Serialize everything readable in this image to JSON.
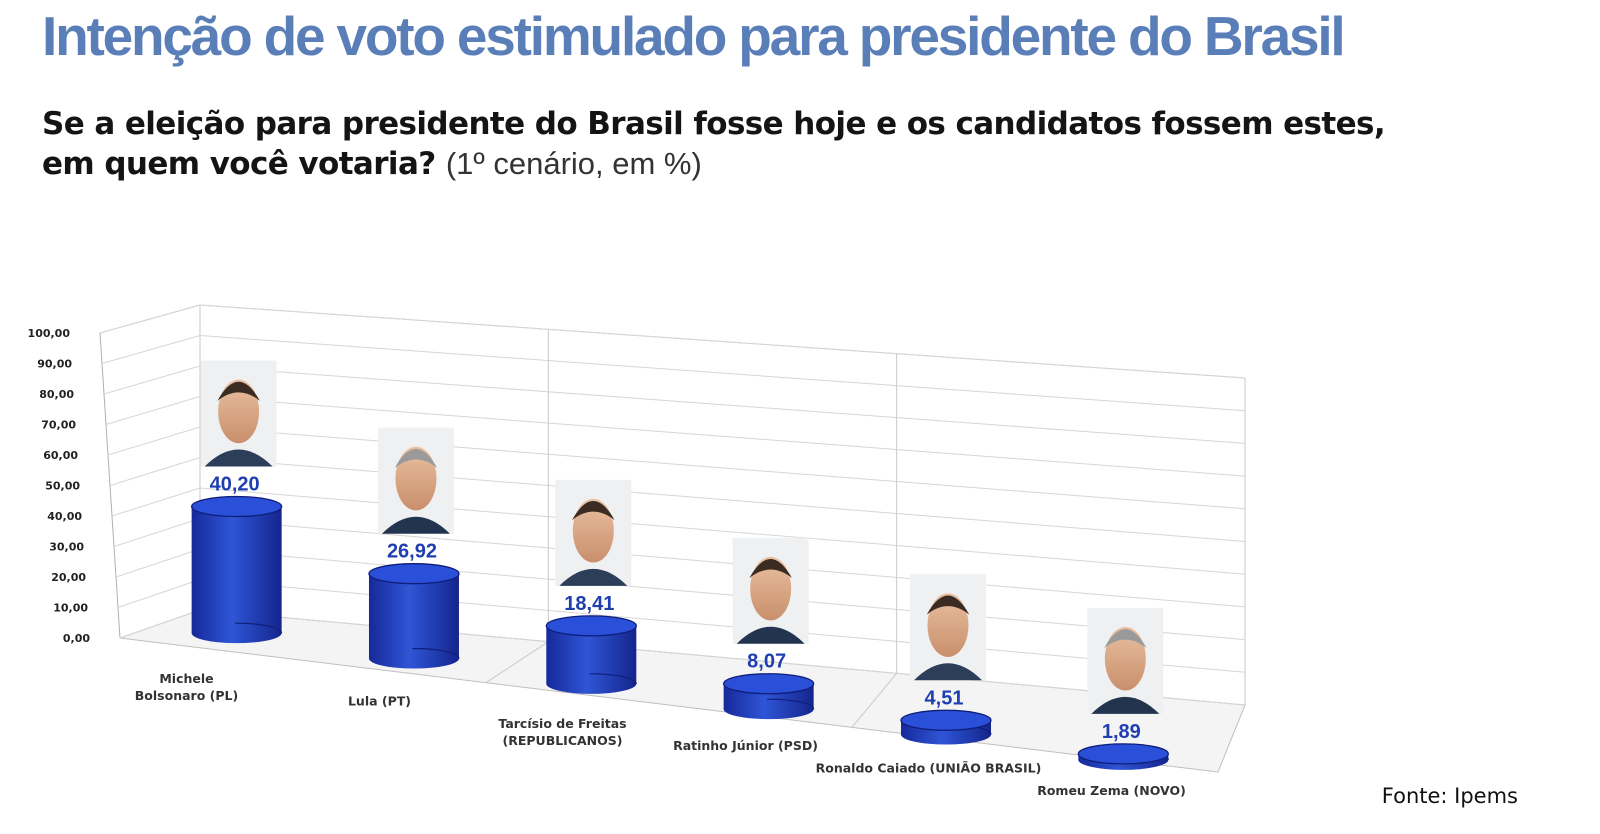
{
  "header": {
    "title": "Intenção de voto estimulado para presidente do Brasil",
    "question_bold_line1": "Se a eleição para presidente do Brasil fosse hoje e os candidatos fossem estes,",
    "question_bold_line2": "em quem você votaria?",
    "question_note": "(1º cenário, em %)"
  },
  "footer": {
    "source": "Fonte: Ipems"
  },
  "colors": {
    "title": "#5a7fb8",
    "bar": "#1f3fc0",
    "value_label": "#1f3fb0"
  },
  "chart_data": {
    "type": "bar",
    "style": "3d-cylinder",
    "title": "",
    "xlabel": "",
    "ylabel": "",
    "ylim": [
      0,
      100
    ],
    "y_ticks": [
      "0,00",
      "10,00",
      "20,00",
      "30,00",
      "40,00",
      "50,00",
      "60,00",
      "70,00",
      "80,00",
      "90,00",
      "100,00"
    ],
    "grid": true,
    "categories": [
      [
        "Michele",
        "Bolsonaro (PL)"
      ],
      [
        "Lula (PT)"
      ],
      [
        "Tarcísio de Freitas",
        "(REPUBLICANOS)"
      ],
      [
        "Ratinho Júnior (PSD)"
      ],
      [
        "Ronaldo Caiado (UNIÃO BRASIL)"
      ],
      [
        "Romeu Zema (NOVO)"
      ]
    ],
    "values": [
      40.2,
      26.92,
      18.41,
      8.07,
      4.51,
      1.89
    ],
    "value_labels": [
      "40,20",
      "26,92",
      "18,41",
      "8,07",
      "4,51",
      "1,89"
    ],
    "photos": [
      "Michele Bolsonaro",
      "Lula",
      "Tarcísio de Freitas",
      "Ratinho Júnior",
      "Ronaldo Caiado",
      "Romeu Zema"
    ]
  }
}
